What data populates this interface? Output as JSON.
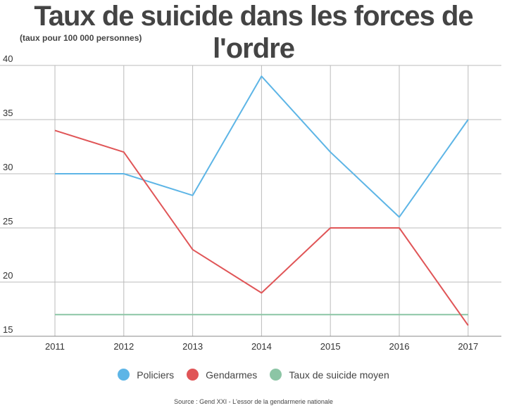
{
  "chart_data": {
    "type": "line",
    "title": "Taux de suicide dans les forces de l'ordre",
    "subtitle": "(taux pour 100 000 personnes)",
    "categories": [
      "2011",
      "2012",
      "2013",
      "2014",
      "2015",
      "2016",
      "2017"
    ],
    "series": [
      {
        "name": "Policiers",
        "color": "#5db5e6",
        "values": [
          30,
          30,
          28,
          39,
          32,
          26,
          35
        ]
      },
      {
        "name": "Gendarmes",
        "color": "#e05557",
        "values": [
          34,
          32,
          23,
          19,
          25,
          25,
          16
        ]
      },
      {
        "name": "Taux de suicide moyen",
        "color": "#8cc5a5",
        "values": [
          17,
          17,
          17,
          17,
          17,
          17,
          17
        ]
      }
    ],
    "yticks": [
      15,
      20,
      25,
      30,
      35,
      40
    ],
    "ylim": [
      15,
      40
    ],
    "grid": true,
    "legend": "bottom",
    "source": "Source : Gend XXI - L'essor de  la gendarmerie nationale"
  }
}
